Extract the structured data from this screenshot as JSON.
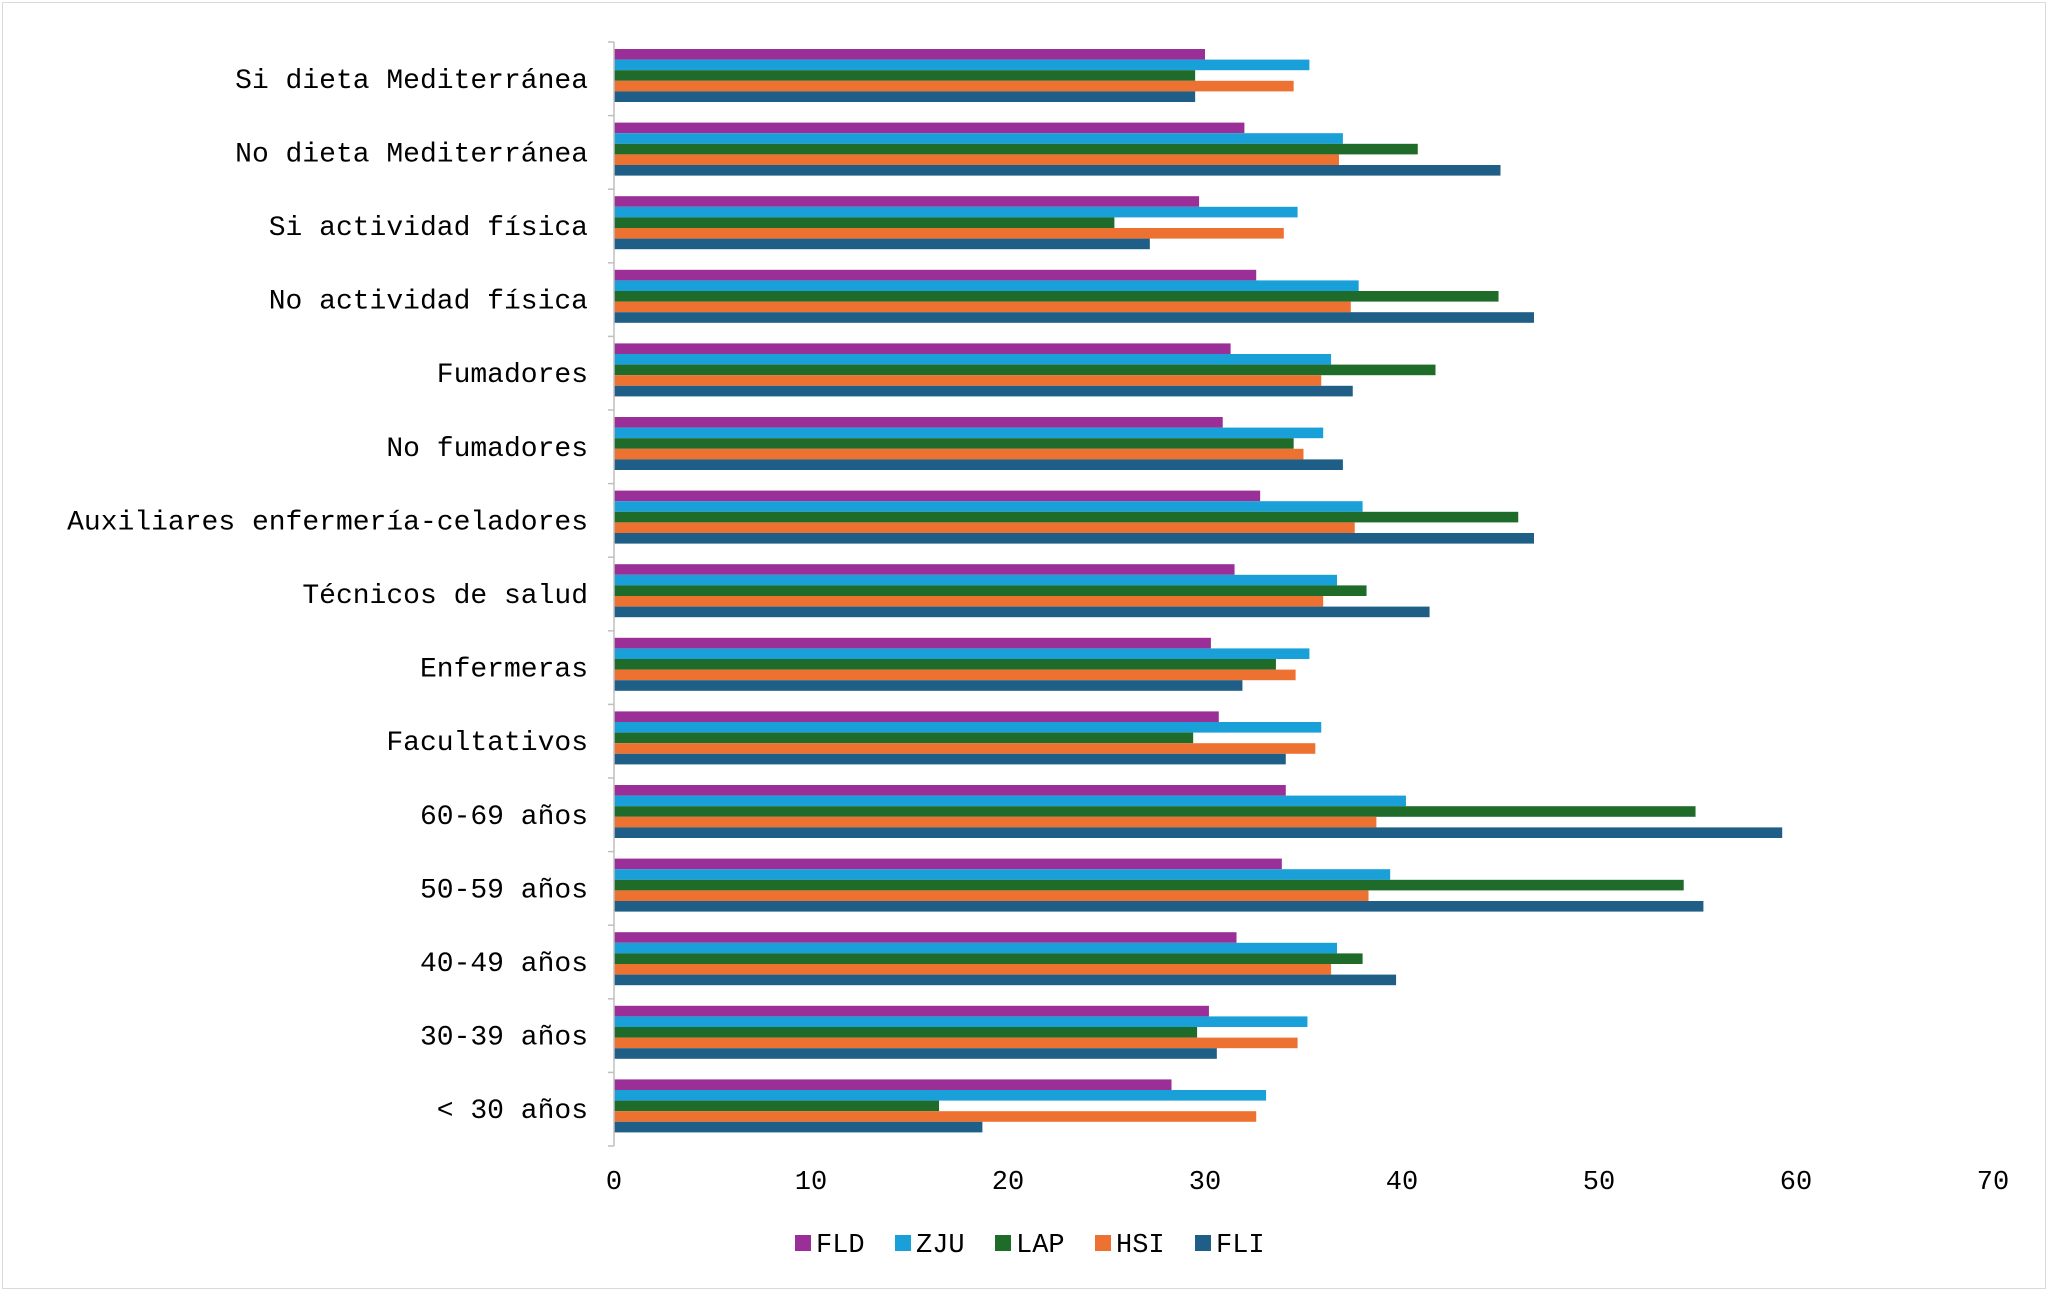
{
  "chart_data": {
    "type": "bar",
    "orientation": "horizontal",
    "title": "",
    "xlabel": "",
    "ylabel": "",
    "xlim": [
      0,
      70
    ],
    "xticks": [
      0,
      10,
      20,
      30,
      40,
      50,
      60,
      70
    ],
    "grid": false,
    "legend_position": "bottom",
    "categories": [
      "Si dieta Mediterránea",
      "No dieta Mediterránea",
      "Si actividad física",
      "No actividad física",
      "Fumadores",
      "No fumadores",
      "Auxiliares enfermería-celadores",
      "Técnicos de salud",
      "Enfermeras",
      "Facultativos",
      "60-69 años",
      "50-59 años",
      "40-49 años",
      "30-39 años",
      "< 30 años"
    ],
    "series": [
      {
        "name": "FLD",
        "color": "#9b2f98",
        "values": [
          30.0,
          32.0,
          29.7,
          32.6,
          31.3,
          30.9,
          32.8,
          31.5,
          30.3,
          30.7,
          34.1,
          33.9,
          31.6,
          30.2,
          28.3
        ]
      },
      {
        "name": "ZJU",
        "color": "#1aa0d8",
        "values": [
          35.3,
          37.0,
          34.7,
          37.8,
          36.4,
          36.0,
          38.0,
          36.7,
          35.3,
          35.9,
          40.2,
          39.4,
          36.7,
          35.2,
          33.1
        ]
      },
      {
        "name": "LAP",
        "color": "#1e6b2a",
        "values": [
          29.5,
          40.8,
          25.4,
          44.9,
          41.7,
          34.5,
          45.9,
          38.2,
          33.6,
          29.4,
          54.9,
          54.3,
          38.0,
          29.6,
          16.5
        ]
      },
      {
        "name": "HSI",
        "color": "#ed7131",
        "values": [
          34.5,
          36.8,
          34.0,
          37.4,
          35.9,
          35.0,
          37.6,
          36.0,
          34.6,
          35.6,
          38.7,
          38.3,
          36.4,
          34.7,
          32.6
        ]
      },
      {
        "name": "FLI",
        "color": "#1f5e86",
        "values": [
          29.5,
          45.0,
          27.2,
          46.7,
          37.5,
          37.0,
          46.7,
          41.4,
          31.9,
          34.1,
          59.3,
          55.3,
          39.7,
          30.6,
          18.7
        ]
      }
    ]
  }
}
